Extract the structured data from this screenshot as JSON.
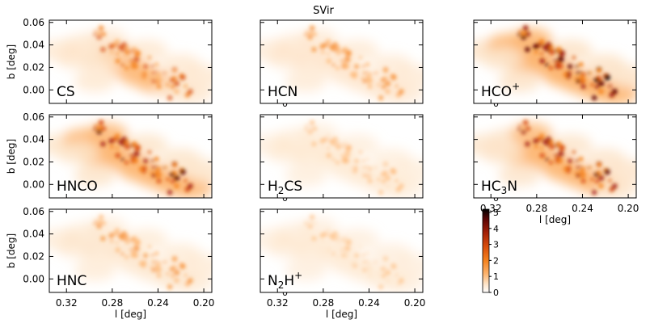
{
  "title": "SVir",
  "chart_data": {
    "type": "heatmap",
    "layout": "3x3 grid of panels, bottom-right empty",
    "xlabel": "l [deg]",
    "ylabel": "b [deg]",
    "xlim": [
      0.335,
      0.193
    ],
    "ylim": [
      -0.012,
      0.062
    ],
    "x_ticks": [
      0.32,
      0.28,
      0.24,
      0.2
    ],
    "x_tick_labels": [
      "0.32",
      "0.28",
      "0.24",
      "0.20"
    ],
    "y_ticks": [
      0.0,
      0.02,
      0.04,
      0.06
    ],
    "y_tick_labels": [
      "0.00",
      "0.02",
      "0.04",
      "0.06"
    ],
    "colorbar": {
      "range": [
        0,
        5.2
      ],
      "ticks": [
        0,
        1,
        2,
        3,
        4,
        5
      ],
      "tick_labels": [
        "0",
        "1",
        "2",
        "3",
        "4",
        "5"
      ],
      "colormap": [
        "#ffffff",
        "#fde4c8",
        "#fdb570",
        "#f5831f",
        "#d94e0b",
        "#a32008",
        "#5a0404",
        "#000000"
      ]
    },
    "panels": [
      {
        "label": "CS",
        "intensity": 0.55,
        "show_ylabel": true,
        "show_xlabel": false
      },
      {
        "label": "HCN",
        "intensity": 0.38,
        "show_ylabel": false,
        "show_xlabel": false
      },
      {
        "label": "HCO+",
        "intensity": 0.95,
        "show_ylabel": false,
        "show_xlabel": false
      },
      {
        "label": "HNCO",
        "intensity": 0.8,
        "show_ylabel": true,
        "show_xlabel": false
      },
      {
        "label": "H2CS",
        "intensity": 0.18,
        "show_ylabel": false,
        "show_xlabel": false
      },
      {
        "label": "HC3N",
        "intensity": 0.78,
        "show_ylabel": false,
        "show_xlabel": true
      },
      {
        "label": "HNC",
        "intensity": 0.35,
        "show_ylabel": true,
        "show_xlabel": true
      },
      {
        "label": "N2H+",
        "intensity": 0.12,
        "show_ylabel": false,
        "show_xlabel": true
      }
    ]
  }
}
